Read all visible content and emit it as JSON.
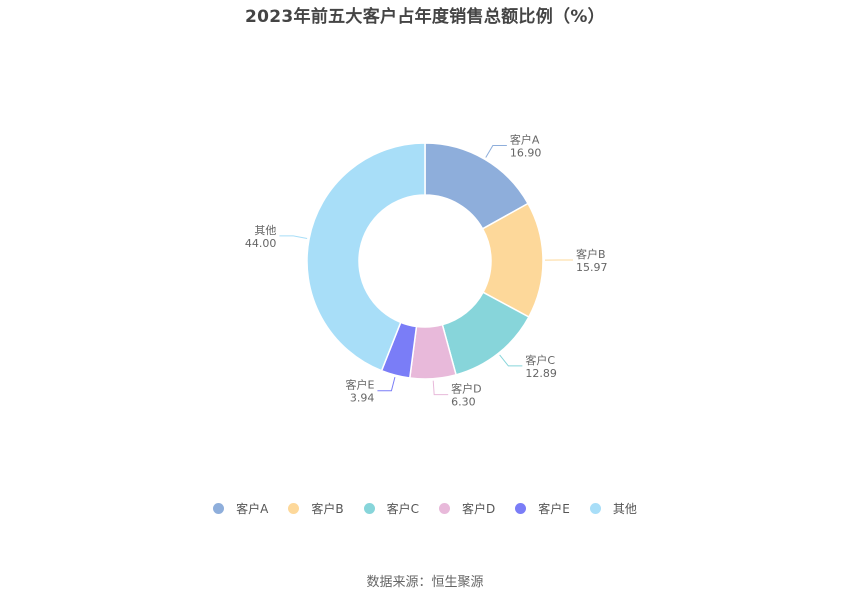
{
  "chart_data": {
    "type": "pie",
    "title": "2023年前五大客户占年度销售总额比例（%）",
    "categories": [
      "客户A",
      "客户B",
      "客户C",
      "客户D",
      "客户E",
      "其他"
    ],
    "values": [
      16.9,
      15.97,
      12.89,
      6.3,
      3.94,
      44.0
    ],
    "value_labels": [
      "16.90",
      "15.97",
      "12.89",
      "6.30",
      "3.94",
      "44.00"
    ],
    "colors": [
      "#8eaedb",
      "#fdd89a",
      "#87d5da",
      "#e8b9da",
      "#7a7df7",
      "#a8def8"
    ],
    "donut": true,
    "legend_position": "bottom"
  },
  "source": "数据来源：恒生聚源"
}
